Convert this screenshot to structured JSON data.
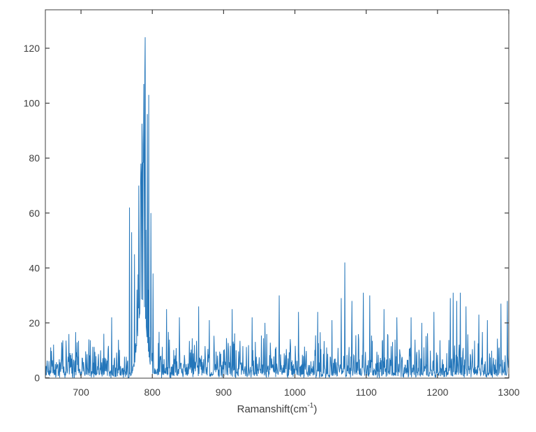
{
  "chart_data": {
    "type": "line",
    "title": "",
    "xlabel": "Ramanshift(cm^-1)",
    "xlabel_base": "Ramanshift(cm",
    "xlabel_sup": "-1",
    "xlabel_close": ")",
    "ylabel": "",
    "xlim": [
      650,
      1300
    ],
    "ylim": [
      0,
      134
    ],
    "xticks": [
      700,
      800,
      900,
      1000,
      1100,
      1200,
      1300
    ],
    "yticks": [
      0,
      20,
      40,
      60,
      80,
      100,
      120
    ],
    "grid": false,
    "legend": null,
    "line_color": "#2476ba",
    "axis_color": "#3d3d3d",
    "background_color": "#ffffff",
    "x_step": 0.5,
    "seed": 1375231,
    "baseline_noise": {
      "mean": 4.3,
      "zero_prob": 0.16,
      "cap": 17
    },
    "main_peak": {
      "description": "broad noisy Raman band near 790 cm-1",
      "range": [
        766,
        806
      ],
      "hump_center": 786,
      "hump_height": 28,
      "hump_sigma": 8,
      "spike_center": 789,
      "spike_sigma": 8.5,
      "spike_scale": 68,
      "spike_prob": 0.55,
      "max_value": 124
    },
    "prominent_spikes": [
      [
        743,
        22
      ],
      [
        768,
        62
      ],
      [
        771,
        53
      ],
      [
        775,
        45
      ],
      [
        781,
        70
      ],
      [
        784,
        78
      ],
      [
        786,
        85
      ],
      [
        788,
        107
      ],
      [
        790,
        124
      ],
      [
        793,
        96
      ],
      [
        795,
        103
      ],
      [
        798,
        60
      ],
      [
        801,
        38
      ],
      [
        820,
        25
      ],
      [
        838,
        22
      ],
      [
        865,
        26
      ],
      [
        880,
        21
      ],
      [
        912,
        25
      ],
      [
        940,
        22
      ],
      [
        958,
        20
      ],
      [
        978,
        30
      ],
      [
        1005,
        24
      ],
      [
        1032,
        24
      ],
      [
        1052,
        21
      ],
      [
        1065,
        29
      ],
      [
        1070,
        42
      ],
      [
        1080,
        28
      ],
      [
        1096,
        31
      ],
      [
        1105,
        30
      ],
      [
        1125,
        25
      ],
      [
        1143,
        22
      ],
      [
        1163,
        22
      ],
      [
        1178,
        20
      ],
      [
        1195,
        24
      ],
      [
        1218,
        29
      ],
      [
        1222,
        31
      ],
      [
        1227,
        28
      ],
      [
        1232,
        31
      ],
      [
        1240,
        26
      ],
      [
        1258,
        23
      ],
      [
        1270,
        21
      ],
      [
        1289,
        27
      ],
      [
        1298,
        28
      ]
    ]
  }
}
